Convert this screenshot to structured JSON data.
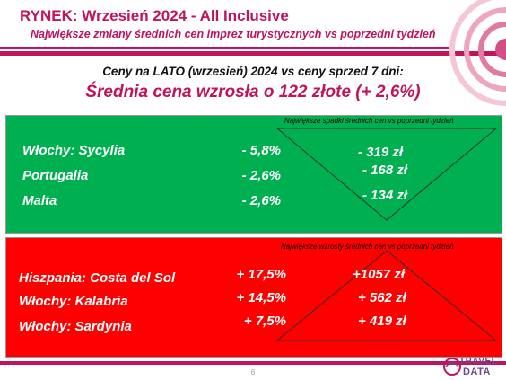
{
  "header": {
    "title": "RYNEK: Wrzesień 2024 - All Inclusive",
    "subtitle": "Największe zmiany średnich cen imprez turystycznych vs poprzedni tydzień"
  },
  "comparison_title": "Ceny na LATO (wrzesień) 2024 vs ceny sprzed 7 dni:",
  "average_change": "Średnia cena wzrosła o 122 złote (+ 2,6%)",
  "decreases": {
    "title": "Największe spadki średnich cen vs poprzedni tydzień",
    "rows": [
      {
        "name": "Włochy: Sycylia",
        "pct": "- 5,8%",
        "amount": "-  319 zł"
      },
      {
        "name": "Portugalia",
        "pct": "- 2,6%",
        "amount": "- 168 zł"
      },
      {
        "name": "Malta",
        "pct": "- 2,6%",
        "amount": "- 134 zł"
      }
    ]
  },
  "increases": {
    "title": "Największe wzrosty średnich cen vs poprzedni tydzień",
    "rows": [
      {
        "name": "Hiszpania: Costa del Sol",
        "pct": "+ 17,5%",
        "amount": "+1057 zł"
      },
      {
        "name": "Włochy: Kalabria",
        "pct": "+ 14,5%",
        "amount": "+ 562 zł"
      },
      {
        "name": "Włochy: Sardynia",
        "pct": "+ 7,5%",
        "amount": "+ 419 zł"
      }
    ]
  },
  "footer": {
    "page_number": "6",
    "logo_line1": "TRAVEL",
    "logo_line2": "DATA"
  },
  "colors": {
    "accent": "#c0145c",
    "decrease_panel": "#00b050",
    "increase_panel": "#ff0000"
  }
}
